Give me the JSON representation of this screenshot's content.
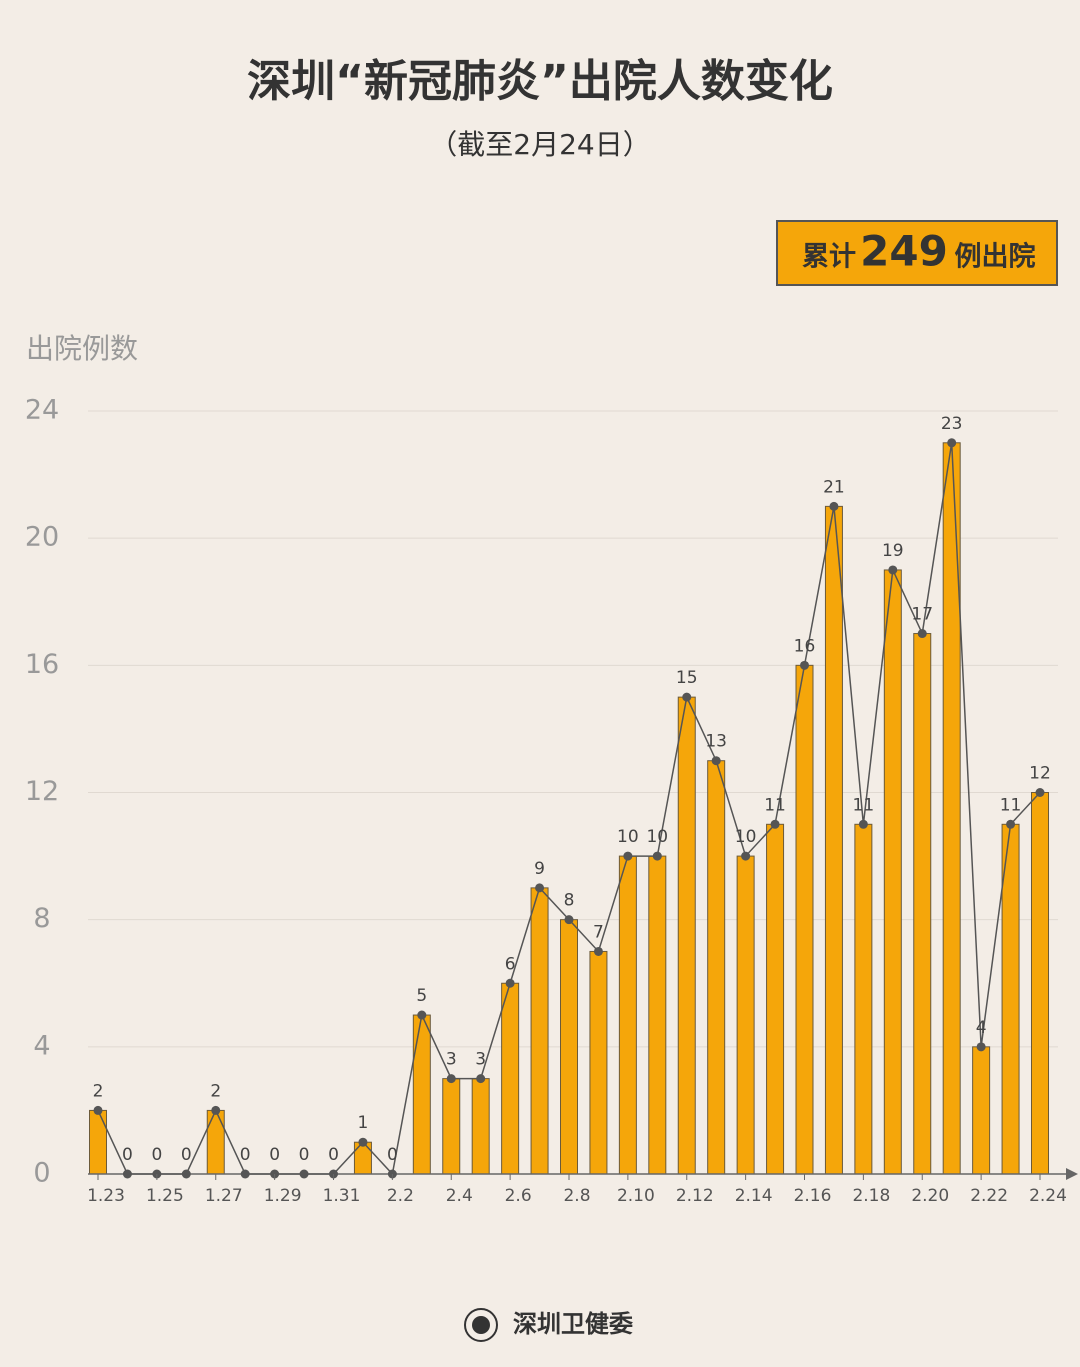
{
  "chart_data": {
    "type": "bar",
    "title": "深圳“新冠肺炎”出院人数变化",
    "subtitle": "（截至2月24日）",
    "annotation": {
      "prefix": "累计",
      "total": 249,
      "suffix": "例出院"
    },
    "y_label": "出院例数",
    "source": "深圳卫健委",
    "categories": [
      "1.23",
      null,
      "1.25",
      null,
      "1.27",
      null,
      "1.29",
      null,
      "1.31",
      null,
      "2.2",
      null,
      "2.4",
      null,
      "2.6",
      null,
      "2.8",
      null,
      "2.10",
      null,
      "2.12",
      null,
      "2.14",
      null,
      "2.16",
      null,
      "2.18",
      null,
      "2.20",
      null,
      "2.22",
      null,
      "2.24"
    ],
    "values": [
      2,
      0,
      0,
      0,
      2,
      0,
      0,
      0,
      0,
      1,
      0,
      5,
      3,
      3,
      6,
      9,
      8,
      7,
      10,
      10,
      15,
      13,
      10,
      11,
      16,
      21,
      11,
      19,
      17,
      23,
      4,
      11,
      12
    ],
    "color": "#f5a60a",
    "line_color": "#555555",
    "ylim": [
      0,
      24
    ],
    "yticks": [
      0,
      4,
      8,
      12,
      16,
      20,
      24
    ],
    "grid": true
  }
}
